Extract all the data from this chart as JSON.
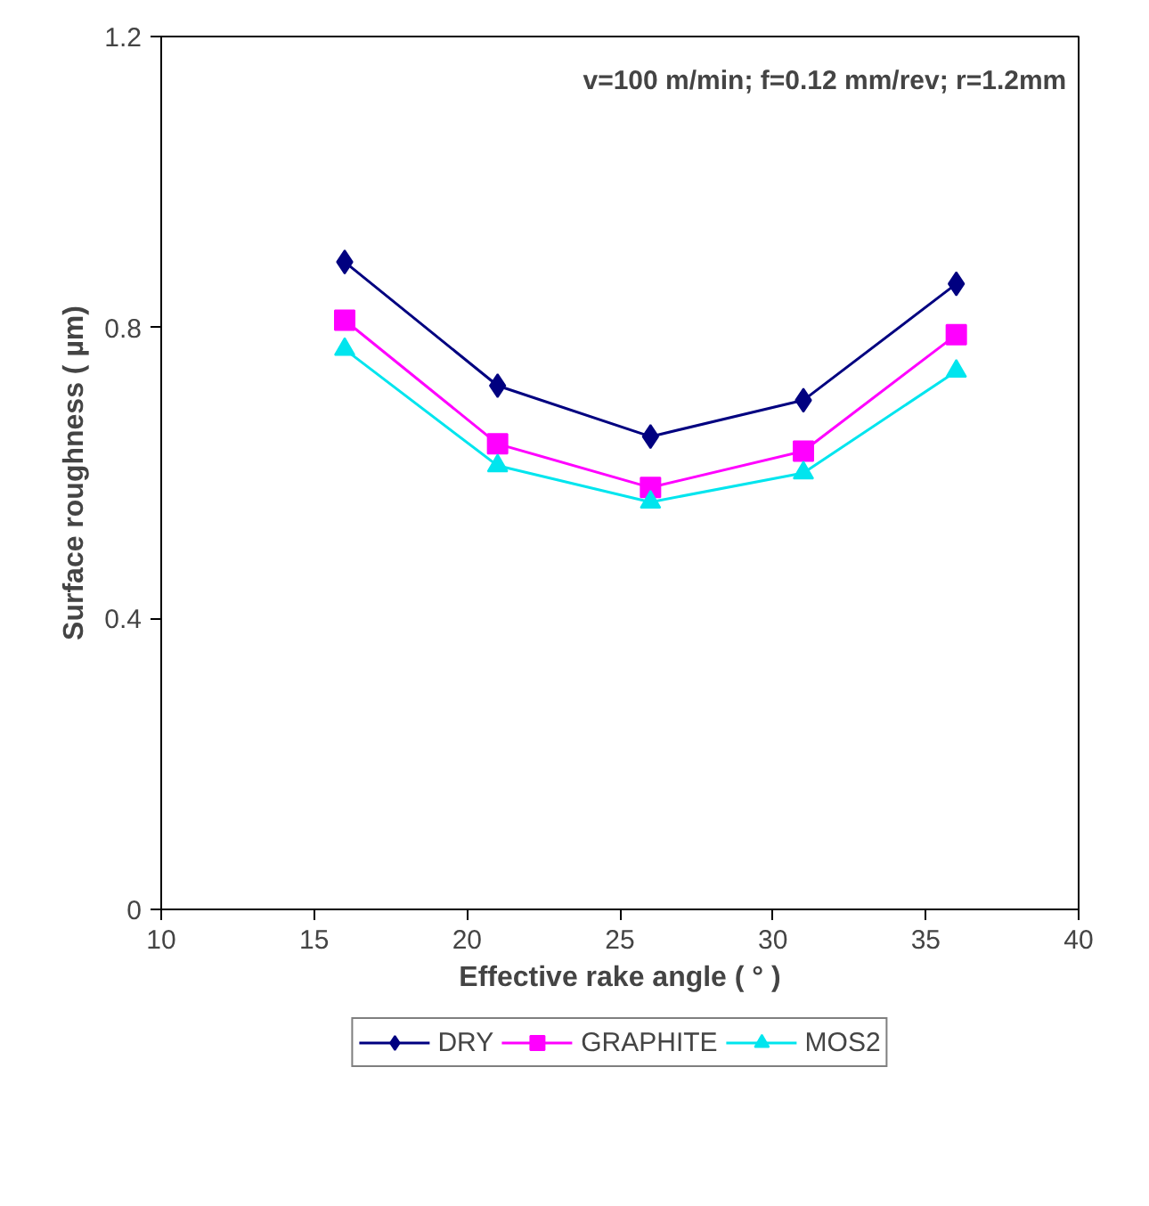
{
  "chart_data": {
    "type": "line",
    "xlabel": "Effective rake angle ( ° )",
    "ylabel": "Surface roughness ( µm)",
    "annotations": [
      "v=100 m/min; f=0.12 mm/rev; r=1.2mm"
    ],
    "x": [
      16,
      21,
      26,
      31,
      36
    ],
    "series": [
      {
        "name": "DRY",
        "color": "#000080",
        "marker": "diamond",
        "values": [
          0.89,
          0.72,
          0.65,
          0.7,
          0.86
        ]
      },
      {
        "name": "GRAPHITE",
        "color": "#ff00ff",
        "marker": "square",
        "values": [
          0.81,
          0.64,
          0.58,
          0.63,
          0.79
        ]
      },
      {
        "name": "MOS2",
        "color": "#00e5ee",
        "marker": "triangle",
        "values": [
          0.77,
          0.61,
          0.56,
          0.6,
          0.74
        ]
      }
    ],
    "xlim": [
      10,
      40
    ],
    "xticks": [
      10,
      15,
      20,
      25,
      30,
      35,
      40
    ],
    "ylim": [
      0,
      1.2
    ],
    "yticks": [
      0,
      {
        "value": 0.4,
        "label": "0.4"
      },
      {
        "value": 0.8,
        "label": "0.8"
      },
      {
        "value": 1.2,
        "label": "1.2"
      }
    ],
    "grid": false,
    "legend": "bottom",
    "line_style": "solid"
  }
}
